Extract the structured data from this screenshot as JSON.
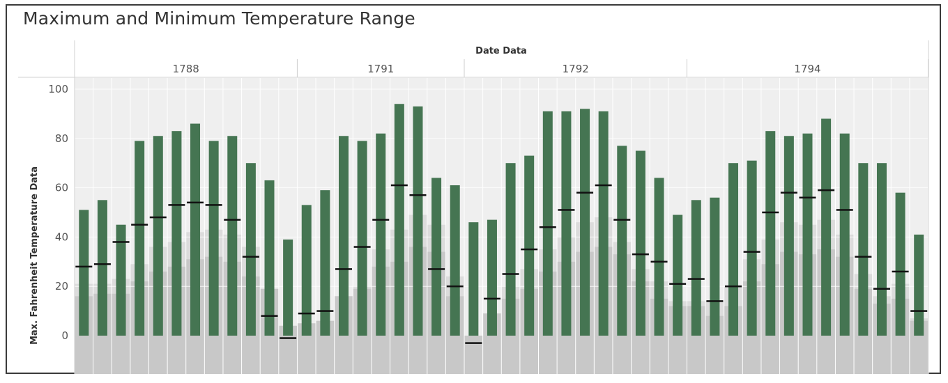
{
  "title": "Maximum and Minimum Temperature Range",
  "chart_data": {
    "type": "bar",
    "title": "Maximum and Minimum Temperature Range",
    "column_header": "Date Data",
    "ylabel": "Max. Fahrenheit Temperature Data",
    "ylim": [
      -16,
      111
    ],
    "y_ticks": [
      0,
      20,
      40,
      60,
      80,
      100
    ],
    "grid": true,
    "colors": {
      "bar": "#457552",
      "min_marker": "#111111",
      "plot_bg": "#efefef",
      "area": "#c8c8c8",
      "area_upper": "#dcdcdc"
    },
    "years": [
      {
        "label": "1788",
        "max": [
          51,
          55,
          45,
          79,
          81,
          83,
          86,
          79,
          81,
          70,
          63,
          39
        ],
        "min": [
          28,
          29,
          38,
          45,
          48,
          53,
          54,
          53,
          47,
          32,
          8,
          -1
        ],
        "area": [
          16,
          17,
          17,
          22,
          26,
          28,
          31,
          32,
          30,
          24,
          19,
          4
        ],
        "area_upper": [
          21,
          21,
          23,
          29,
          36,
          38,
          42,
          43,
          41,
          36,
          19,
          4
        ]
      },
      {
        "label": "1791",
        "max": [
          53,
          59,
          81,
          79,
          82,
          94,
          93,
          64,
          61
        ],
        "min": [
          9,
          10,
          27,
          36,
          47,
          61,
          57,
          27,
          20
        ],
        "area": [
          5,
          6,
          16,
          19,
          28,
          30,
          36,
          34,
          16
        ],
        "area_upper": [
          5,
          6,
          16,
          20,
          35,
          43,
          49,
          45,
          24
        ]
      },
      {
        "label": "1792",
        "max": [
          46,
          47,
          70,
          73,
          91,
          91,
          92,
          91,
          77,
          75,
          64,
          49
        ],
        "min": [
          -3,
          15,
          25,
          35,
          44,
          51,
          58,
          61,
          47,
          33,
          30,
          21
        ],
        "area": [
          -1,
          9,
          15,
          19,
          26,
          30,
          34,
          36,
          33,
          22,
          15,
          12
        ],
        "area_upper": [
          -1,
          9,
          20,
          27,
          35,
          40,
          46,
          48,
          38,
          27,
          22,
          14
        ]
      },
      {
        "label": "1794",
        "max": [
          55,
          56,
          70,
          71,
          83,
          81,
          82,
          88,
          82,
          70,
          70,
          58,
          41
        ],
        "min": [
          23,
          14,
          20,
          34,
          50,
          58,
          56,
          59,
          51,
          32,
          19,
          26,
          10
        ],
        "area": [
          12,
          8,
          12,
          22,
          29,
          34,
          33,
          35,
          32,
          19,
          13,
          15,
          6
        ],
        "area_upper": [
          14,
          14,
          20,
          31,
          39,
          46,
          45,
          47,
          41,
          25,
          16,
          21,
          7
        ]
      }
    ]
  }
}
